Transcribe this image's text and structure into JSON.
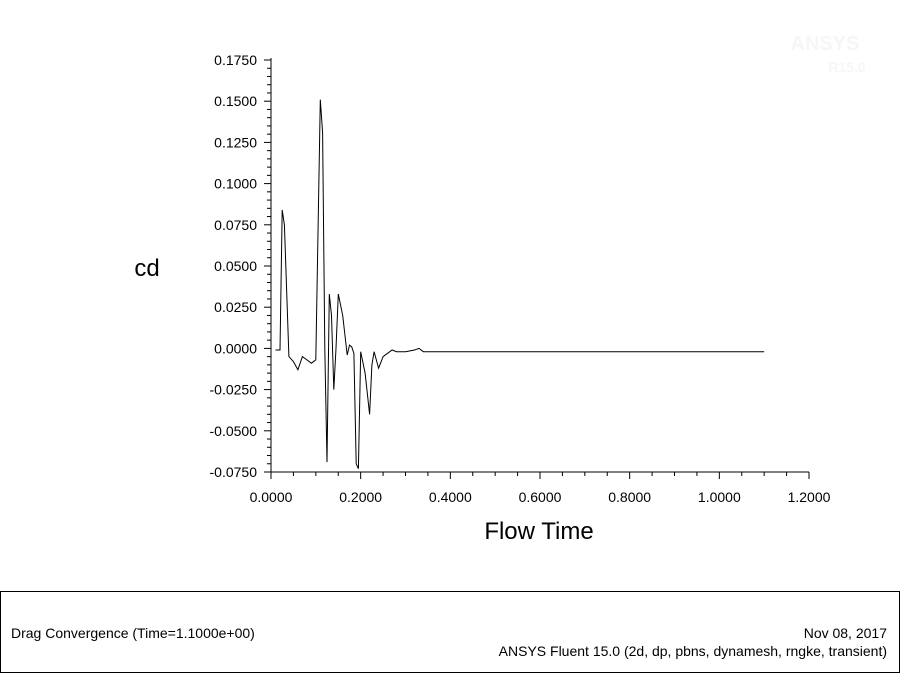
{
  "chart_data": {
    "type": "line",
    "title": "",
    "xlabel": "Flow Time",
    "ylabel": "cd",
    "xlim": [
      0.0,
      1.2
    ],
    "ylim": [
      -0.075,
      0.175
    ],
    "x_ticks": [
      "0.0000",
      "0.2000",
      "0.4000",
      "0.6000",
      "0.8000",
      "1.0000",
      "1.2000"
    ],
    "y_ticks": [
      "0.1750",
      "0.1500",
      "0.1250",
      "0.1000",
      "0.0750",
      "0.0500",
      "0.0250",
      "0.0000",
      "-0.0250",
      "-0.0500",
      "-0.0750"
    ],
    "grid": false,
    "series": [
      {
        "color": "#000000",
        "x": [
          0.01,
          0.02,
          0.025,
          0.03,
          0.04,
          0.05,
          0.06,
          0.07,
          0.08,
          0.09,
          0.1,
          0.11,
          0.115,
          0.12,
          0.125,
          0.13,
          0.135,
          0.14,
          0.145,
          0.15,
          0.16,
          0.17,
          0.175,
          0.18,
          0.185,
          0.19,
          0.195,
          0.2,
          0.21,
          0.22,
          0.225,
          0.23,
          0.24,
          0.25,
          0.26,
          0.27,
          0.28,
          0.3,
          0.32,
          0.33,
          0.34,
          0.36,
          0.4,
          0.5,
          0.6,
          0.8,
          1.0,
          1.1
        ],
        "y": [
          -0.001,
          -0.001,
          0.084,
          0.075,
          -0.005,
          -0.008,
          -0.013,
          -0.005,
          -0.007,
          -0.009,
          -0.007,
          0.151,
          0.131,
          0.0,
          -0.069,
          0.033,
          0.02,
          -0.025,
          0.0,
          0.033,
          0.02,
          -0.004,
          0.002,
          0.001,
          -0.003,
          -0.07,
          -0.073,
          -0.002,
          -0.015,
          -0.04,
          -0.01,
          -0.002,
          -0.012,
          -0.005,
          -0.003,
          -0.001,
          -0.002,
          -0.002,
          -0.001,
          0.0,
          -0.002,
          -0.002,
          -0.002,
          -0.002,
          -0.002,
          -0.002,
          -0.002,
          -0.002
        ]
      }
    ]
  },
  "footer": {
    "plot_name": "Drag Convergence  (Time=1.1000e+00)",
    "date": "Nov 08, 2017",
    "software": "ANSYS Fluent 15.0 (2d, dp, pbns, dynamesh, rngke, transient)"
  },
  "logo": {
    "text_top": "ANSYS",
    "text_bottom": "R15.0"
  }
}
